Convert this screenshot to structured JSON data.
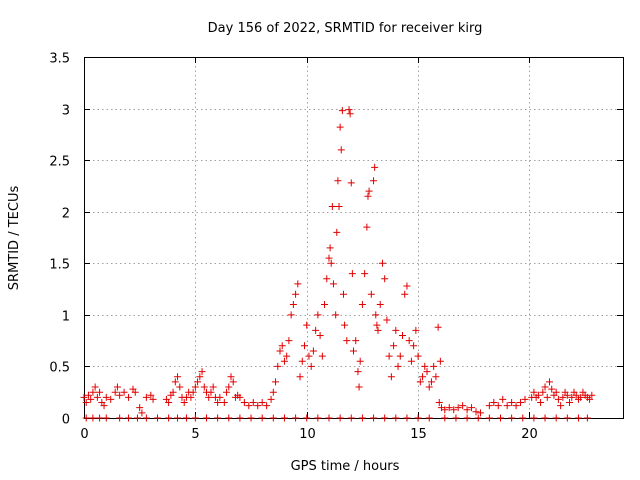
{
  "chart_data": {
    "type": "scatter",
    "title": "Day 156 of 2022, SRMTID for receiver kirg",
    "xlabel": "GPS time / hours",
    "ylabel": "SRMTID / TECUs",
    "xlim": [
      0,
      24.2
    ],
    "ylim": [
      0,
      3.5
    ],
    "xticks": [
      0,
      5,
      10,
      15,
      20
    ],
    "xtick_labels": [
      "0",
      "5",
      "10",
      "15",
      "20"
    ],
    "yticks": [
      0,
      0.5,
      1,
      1.5,
      2,
      2.5,
      3,
      3.5
    ],
    "ytick_labels": [
      "0",
      "0.5",
      "1",
      "1.5",
      "2",
      "2.5",
      "3",
      "3.5"
    ],
    "grid": true,
    "marker": "plus",
    "color": "#e00000",
    "series": [
      {
        "name": "SRMTID",
        "points": [
          [
            0.1,
            0.0
          ],
          [
            0.4,
            0.0
          ],
          [
            0.7,
            0.0
          ],
          [
            1.0,
            0.0
          ],
          [
            1.6,
            0.0
          ],
          [
            2.0,
            0.0
          ],
          [
            2.4,
            0.0
          ],
          [
            2.8,
            0.0
          ],
          [
            3.3,
            0.0
          ],
          [
            3.8,
            0.0
          ],
          [
            4.2,
            0.0
          ],
          [
            4.6,
            0.0
          ],
          [
            5.0,
            0.0
          ],
          [
            5.5,
            0.0
          ],
          [
            6.0,
            0.0
          ],
          [
            6.5,
            0.0
          ],
          [
            7.0,
            0.0
          ],
          [
            7.5,
            0.0
          ],
          [
            8.0,
            0.0
          ],
          [
            8.5,
            0.0
          ],
          [
            9.0,
            0.0
          ],
          [
            9.5,
            0.0
          ],
          [
            10.0,
            0.0
          ],
          [
            10.5,
            0.0
          ],
          [
            11.0,
            0.0
          ],
          [
            11.5,
            0.0
          ],
          [
            12.0,
            0.0
          ],
          [
            12.5,
            0.0
          ],
          [
            13.0,
            0.0
          ],
          [
            13.5,
            0.0
          ],
          [
            14.0,
            0.0
          ],
          [
            14.5,
            0.0
          ],
          [
            15.0,
            0.0
          ],
          [
            15.5,
            0.0
          ],
          [
            16.2,
            0.0
          ],
          [
            16.7,
            0.0
          ],
          [
            17.2,
            0.0
          ],
          [
            17.7,
            0.0
          ],
          [
            18.2,
            0.0
          ],
          [
            18.7,
            0.0
          ],
          [
            19.2,
            0.0
          ],
          [
            19.7,
            0.0
          ],
          [
            20.2,
            0.0
          ],
          [
            20.7,
            0.0
          ],
          [
            21.2,
            0.0
          ],
          [
            21.7,
            0.0
          ],
          [
            22.2,
            0.0
          ],
          [
            22.6,
            0.0
          ],
          [
            0.0,
            0.2
          ],
          [
            0.1,
            0.15
          ],
          [
            0.2,
            0.22
          ],
          [
            0.3,
            0.18
          ],
          [
            0.4,
            0.25
          ],
          [
            0.5,
            0.3
          ],
          [
            0.6,
            0.2
          ],
          [
            0.7,
            0.25
          ],
          [
            0.8,
            0.15
          ],
          [
            0.9,
            0.12
          ],
          [
            1.0,
            0.2
          ],
          [
            1.2,
            0.18
          ],
          [
            1.4,
            0.25
          ],
          [
            1.5,
            0.3
          ],
          [
            1.6,
            0.22
          ],
          [
            1.8,
            0.25
          ],
          [
            2.0,
            0.2
          ],
          [
            2.2,
            0.28
          ],
          [
            2.3,
            0.25
          ],
          [
            2.5,
            0.1
          ],
          [
            2.6,
            0.05
          ],
          [
            2.8,
            0.2
          ],
          [
            3.0,
            0.22
          ],
          [
            3.1,
            0.18
          ],
          [
            3.7,
            0.18
          ],
          [
            3.8,
            0.15
          ],
          [
            3.9,
            0.22
          ],
          [
            4.0,
            0.25
          ],
          [
            4.1,
            0.35
          ],
          [
            4.2,
            0.4
          ],
          [
            4.3,
            0.3
          ],
          [
            4.4,
            0.2
          ],
          [
            4.5,
            0.15
          ],
          [
            4.6,
            0.2
          ],
          [
            4.7,
            0.25
          ],
          [
            4.8,
            0.2
          ],
          [
            4.9,
            0.25
          ],
          [
            5.0,
            0.3
          ],
          [
            5.1,
            0.35
          ],
          [
            5.2,
            0.4
          ],
          [
            5.3,
            0.45
          ],
          [
            5.4,
            0.3
          ],
          [
            5.5,
            0.25
          ],
          [
            5.6,
            0.2
          ],
          [
            5.7,
            0.25
          ],
          [
            5.8,
            0.3
          ],
          [
            5.9,
            0.2
          ],
          [
            6.0,
            0.15
          ],
          [
            6.1,
            0.2
          ],
          [
            6.3,
            0.15
          ],
          [
            6.4,
            0.25
          ],
          [
            6.5,
            0.3
          ],
          [
            6.6,
            0.4
          ],
          [
            6.7,
            0.35
          ],
          [
            6.8,
            0.2
          ],
          [
            6.9,
            0.22
          ],
          [
            7.0,
            0.2
          ],
          [
            7.2,
            0.15
          ],
          [
            7.4,
            0.12
          ],
          [
            7.6,
            0.15
          ],
          [
            7.8,
            0.12
          ],
          [
            8.0,
            0.15
          ],
          [
            8.2,
            0.12
          ],
          [
            8.4,
            0.18
          ],
          [
            8.5,
            0.25
          ],
          [
            8.6,
            0.35
          ],
          [
            8.7,
            0.5
          ],
          [
            8.8,
            0.65
          ],
          [
            8.9,
            0.7
          ],
          [
            9.0,
            0.55
          ],
          [
            9.1,
            0.6
          ],
          [
            9.2,
            0.75
          ],
          [
            9.3,
            1.0
          ],
          [
            9.4,
            1.1
          ],
          [
            9.5,
            1.2
          ],
          [
            9.6,
            1.3
          ],
          [
            9.7,
            0.4
          ],
          [
            9.8,
            0.55
          ],
          [
            9.9,
            0.7
          ],
          [
            10.0,
            0.9
          ],
          [
            10.1,
            0.6
          ],
          [
            10.2,
            0.5
          ],
          [
            10.3,
            0.65
          ],
          [
            10.4,
            0.85
          ],
          [
            10.5,
            1.0
          ],
          [
            10.6,
            0.8
          ],
          [
            10.7,
            0.6
          ],
          [
            10.8,
            1.1
          ],
          [
            10.9,
            1.35
          ],
          [
            11.0,
            1.55
          ],
          [
            11.05,
            1.65
          ],
          [
            11.1,
            1.5
          ],
          [
            11.15,
            2.05
          ],
          [
            11.2,
            1.3
          ],
          [
            11.3,
            1.0
          ],
          [
            11.35,
            1.8
          ],
          [
            11.4,
            2.3
          ],
          [
            11.45,
            2.05
          ],
          [
            11.5,
            2.82
          ],
          [
            11.55,
            2.6
          ],
          [
            11.6,
            2.98
          ],
          [
            11.65,
            1.2
          ],
          [
            11.7,
            0.9
          ],
          [
            11.8,
            0.75
          ],
          [
            11.9,
            2.99
          ],
          [
            11.95,
            2.95
          ],
          [
            12.0,
            2.28
          ],
          [
            12.05,
            1.4
          ],
          [
            12.1,
            0.65
          ],
          [
            12.2,
            0.75
          ],
          [
            12.3,
            0.45
          ],
          [
            12.35,
            0.3
          ],
          [
            12.4,
            0.55
          ],
          [
            12.5,
            1.1
          ],
          [
            12.6,
            1.4
          ],
          [
            12.7,
            1.85
          ],
          [
            12.75,
            2.15
          ],
          [
            12.8,
            2.2
          ],
          [
            12.9,
            1.2
          ],
          [
            13.0,
            2.3
          ],
          [
            13.05,
            2.43
          ],
          [
            13.1,
            1.0
          ],
          [
            13.15,
            0.9
          ],
          [
            13.2,
            0.85
          ],
          [
            13.3,
            1.1
          ],
          [
            13.4,
            1.5
          ],
          [
            13.5,
            1.35
          ],
          [
            13.6,
            0.95
          ],
          [
            13.7,
            0.6
          ],
          [
            13.8,
            0.4
          ],
          [
            13.9,
            0.7
          ],
          [
            14.0,
            0.85
          ],
          [
            14.1,
            0.5
          ],
          [
            14.2,
            0.6
          ],
          [
            14.3,
            0.8
          ],
          [
            14.4,
            1.2
          ],
          [
            14.5,
            1.28
          ],
          [
            14.6,
            0.75
          ],
          [
            14.7,
            0.55
          ],
          [
            14.8,
            0.7
          ],
          [
            14.9,
            0.85
          ],
          [
            15.0,
            0.6
          ],
          [
            15.1,
            0.35
          ],
          [
            15.2,
            0.4
          ],
          [
            15.3,
            0.5
          ],
          [
            15.4,
            0.45
          ],
          [
            15.5,
            0.3
          ],
          [
            15.6,
            0.35
          ],
          [
            15.7,
            0.5
          ],
          [
            15.8,
            0.4
          ],
          [
            15.9,
            0.88
          ],
          [
            16.0,
            0.55
          ],
          [
            15.95,
            0.15
          ],
          [
            16.05,
            0.1
          ],
          [
            16.2,
            0.08
          ],
          [
            16.4,
            0.1
          ],
          [
            16.6,
            0.08
          ],
          [
            16.8,
            0.1
          ],
          [
            17.0,
            0.12
          ],
          [
            17.2,
            0.08
          ],
          [
            17.4,
            0.1
          ],
          [
            17.6,
            0.06
          ],
          [
            17.8,
            0.05
          ],
          [
            18.2,
            0.12
          ],
          [
            18.4,
            0.15
          ],
          [
            18.6,
            0.12
          ],
          [
            18.8,
            0.18
          ],
          [
            19.0,
            0.12
          ],
          [
            19.2,
            0.15
          ],
          [
            19.4,
            0.12
          ],
          [
            19.6,
            0.15
          ],
          [
            19.8,
            0.18
          ],
          [
            20.1,
            0.2
          ],
          [
            20.2,
            0.25
          ],
          [
            20.3,
            0.2
          ],
          [
            20.4,
            0.22
          ],
          [
            20.5,
            0.15
          ],
          [
            20.6,
            0.25
          ],
          [
            20.7,
            0.3
          ],
          [
            20.8,
            0.2
          ],
          [
            20.9,
            0.35
          ],
          [
            21.0,
            0.28
          ],
          [
            21.1,
            0.22
          ],
          [
            21.2,
            0.25
          ],
          [
            21.3,
            0.18
          ],
          [
            21.4,
            0.12
          ],
          [
            21.5,
            0.2
          ],
          [
            21.6,
            0.25
          ],
          [
            21.7,
            0.22
          ],
          [
            21.8,
            0.15
          ],
          [
            21.9,
            0.2
          ],
          [
            22.0,
            0.25
          ],
          [
            22.1,
            0.22
          ],
          [
            22.2,
            0.18
          ],
          [
            22.3,
            0.2
          ],
          [
            22.4,
            0.25
          ],
          [
            22.5,
            0.22
          ],
          [
            22.6,
            0.2
          ],
          [
            22.7,
            0.18
          ],
          [
            22.8,
            0.22
          ]
        ]
      }
    ]
  }
}
